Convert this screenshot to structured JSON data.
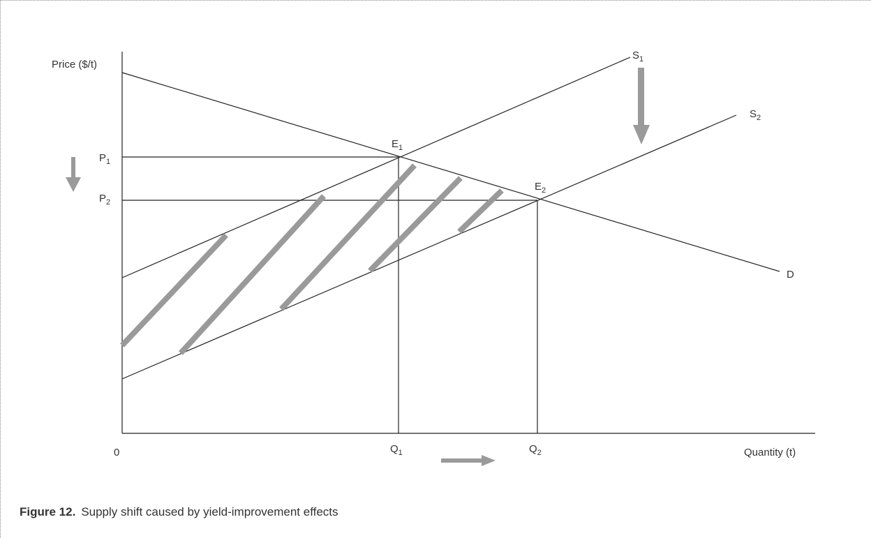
{
  "diagram": {
    "y_axis_label": "Price ($/t)",
    "x_axis_label": "Quantity (t)",
    "origin_label": "0",
    "curves": {
      "s1": {
        "letter": "S",
        "sub": "1"
      },
      "s2": {
        "letter": "S",
        "sub": "2"
      },
      "d": {
        "letter": "D"
      }
    },
    "points": {
      "e1": {
        "letter": "E",
        "sub": "1"
      },
      "e2": {
        "letter": "E",
        "sub": "2"
      },
      "p1": {
        "letter": "P",
        "sub": "1"
      },
      "p2": {
        "letter": "P",
        "sub": "2"
      },
      "q1": {
        "letter": "Q",
        "sub": "1"
      },
      "q2": {
        "letter": "Q",
        "sub": "2"
      }
    },
    "colors": {
      "line": "#222222",
      "shade": "#9a9a9a",
      "text": "#333333"
    }
  },
  "caption": {
    "label": "Figure 12.",
    "text": "Supply shift caused by yield-improvement effects"
  }
}
